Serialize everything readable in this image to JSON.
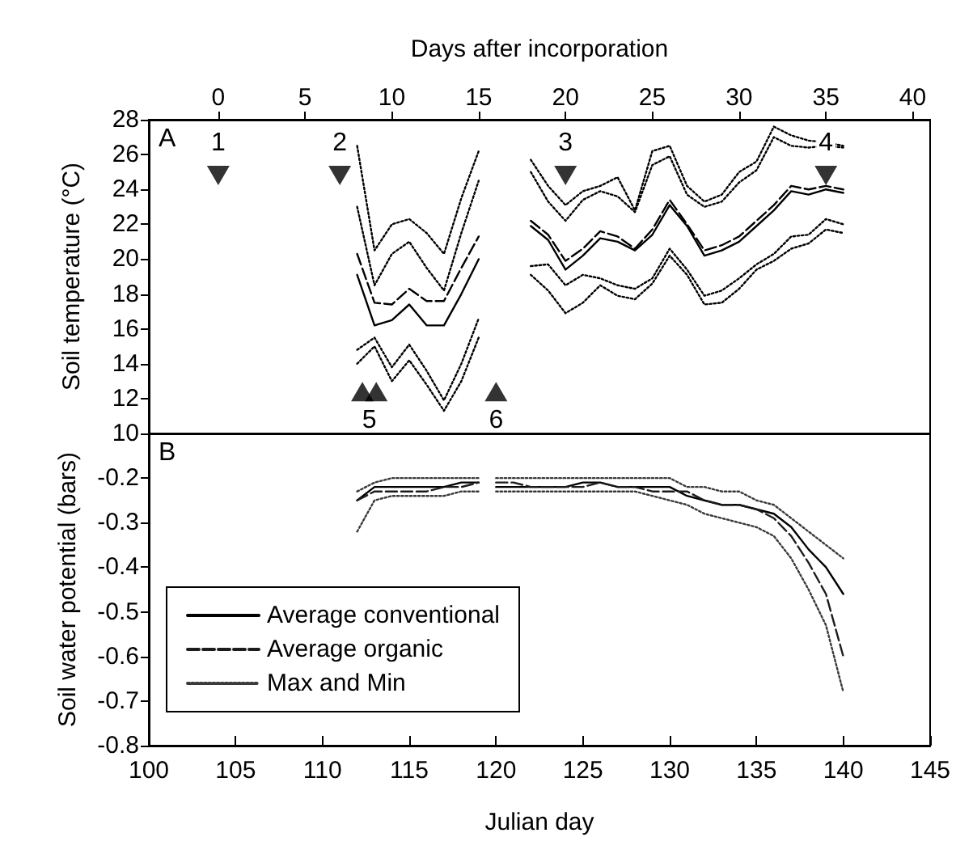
{
  "chart_data": [
    {
      "type": "line",
      "ylabel": "Soil temperature (°C)",
      "x2label": "Days after incorporation",
      "xlim": [
        100,
        145
      ],
      "x2lim": [
        -4,
        41
      ],
      "x2ticks": [
        0,
        5,
        10,
        15,
        20,
        25,
        30,
        35,
        40
      ],
      "ylim": [
        10,
        28
      ],
      "yticks": [
        10,
        12,
        14,
        16,
        18,
        20,
        22,
        24,
        26,
        28
      ],
      "tick_labels": "y",
      "marker": "none",
      "annotations": [
        "A",
        "1",
        "2",
        "3",
        "4",
        "5",
        "6"
      ],
      "x": [
        112,
        113,
        114,
        115,
        116,
        117,
        118,
        119,
        120,
        122,
        123,
        124,
        125,
        126,
        127,
        128,
        129,
        130,
        131,
        132,
        133,
        134,
        135,
        136,
        137,
        138,
        139,
        140
      ],
      "series": [
        {
          "color": "#000000",
          "line_style": "solid",
          "values": [
            19.1,
            16.2,
            16.5,
            17.4,
            16.2,
            16.2,
            18.0,
            20.0,
            null,
            21.9,
            21.1,
            19.4,
            20.2,
            21.2,
            21.0,
            20.5,
            21.4,
            23.1,
            21.9,
            20.2,
            20.5,
            21.0,
            21.9,
            22.8,
            23.9,
            23.7,
            24.0,
            23.8
          ]
        },
        {
          "color": "#000000",
          "line_style": "dashed",
          "values": [
            20.3,
            17.5,
            17.4,
            18.3,
            17.6,
            17.6,
            19.5,
            21.3,
            null,
            22.2,
            21.4,
            19.9,
            20.6,
            21.6,
            21.3,
            20.6,
            21.7,
            23.4,
            22.0,
            20.5,
            20.8,
            21.3,
            22.2,
            23.1,
            24.2,
            24.0,
            24.2,
            24.0
          ]
        },
        {
          "color": "#000000",
          "line_style": "dotted",
          "values": [
            26.5,
            20.5,
            22.0,
            22.3,
            21.5,
            20.3,
            23.5,
            26.2,
            null,
            25.7,
            24.2,
            23.1,
            23.9,
            24.2,
            24.7,
            22.8,
            26.2,
            26.5,
            24.2,
            23.3,
            23.7,
            25.0,
            25.6,
            27.6,
            27.1,
            26.8,
            26.7,
            26.5
          ]
        },
        {
          "color": "#000000",
          "line_style": "dotted",
          "values": [
            23.0,
            18.5,
            20.3,
            21.0,
            19.5,
            18.2,
            21.5,
            24.5,
            null,
            25.0,
            23.3,
            22.2,
            23.4,
            23.9,
            23.6,
            22.7,
            25.4,
            25.9,
            23.7,
            23.0,
            23.3,
            24.4,
            25.1,
            27.0,
            26.5,
            26.4,
            26.5,
            26.4
          ]
        },
        {
          "color": "#000000",
          "line_style": "dotted",
          "values": [
            14.8,
            15.5,
            13.8,
            15.1,
            13.6,
            11.9,
            14.0,
            16.6,
            null,
            19.6,
            19.7,
            18.5,
            19.1,
            18.9,
            18.5,
            18.3,
            18.9,
            20.6,
            19.4,
            17.9,
            18.2,
            18.9,
            19.7,
            20.3,
            21.3,
            21.4,
            22.3,
            22.0
          ]
        },
        {
          "color": "#000000",
          "line_style": "dotted",
          "values": [
            14.0,
            15.0,
            13.0,
            14.2,
            12.8,
            11.3,
            13.0,
            15.5,
            null,
            19.1,
            18.2,
            16.9,
            17.5,
            18.5,
            17.9,
            17.7,
            18.6,
            20.2,
            19.1,
            17.4,
            17.5,
            18.3,
            19.4,
            19.9,
            20.6,
            20.9,
            21.7,
            21.5
          ]
        },
        {
          "type": "scatter",
          "marker": "triangle",
          "color": "#000000",
          "x": [
            104,
            111,
            124,
            139,
            112.3,
            113.1,
            120
          ],
          "values": [
            24.8,
            24.8,
            24.8,
            24.8,
            12.4,
            12.4,
            12.4
          ]
        }
      ]
    },
    {
      "type": "line",
      "ylabel": "Soil water potential (bars)",
      "xlabel": "Julian day",
      "xlim": [
        100,
        145
      ],
      "xticks": [
        100,
        105,
        110,
        115,
        120,
        125,
        130,
        135,
        140,
        145
      ],
      "ylim": [
        -0.8,
        -0.1
      ],
      "yticks": [
        -0.8,
        -0.7,
        -0.6,
        -0.5,
        -0.4,
        -0.3,
        -0.2
      ],
      "marker": "none",
      "legend": "bottom left",
      "annotations": [
        "B"
      ],
      "x": [
        112,
        113,
        114,
        115,
        116,
        117,
        118,
        119,
        119.5,
        120,
        121,
        122,
        123,
        124,
        125,
        126,
        127,
        128,
        129,
        130,
        131,
        132,
        133,
        134,
        135,
        136,
        137,
        138,
        139,
        140
      ],
      "series": [
        {
          "name": "Average conventional",
          "color": "#000000",
          "line_style": "solid",
          "values": [
            -0.25,
            -0.22,
            -0.22,
            -0.22,
            -0.22,
            -0.22,
            -0.21,
            -0.21,
            null,
            -0.22,
            -0.22,
            -0.22,
            -0.22,
            -0.22,
            -0.21,
            -0.21,
            -0.22,
            -0.22,
            -0.22,
            -0.22,
            -0.24,
            -0.25,
            -0.26,
            -0.26,
            -0.27,
            -0.28,
            -0.31,
            -0.36,
            -0.4,
            -0.46
          ]
        },
        {
          "name": "Average organic",
          "color": "#1c1c1c",
          "line_style": "dashed",
          "values": [
            -0.25,
            -0.23,
            -0.23,
            -0.23,
            -0.23,
            -0.22,
            -0.22,
            -0.21,
            null,
            -0.21,
            -0.21,
            -0.22,
            -0.22,
            -0.22,
            -0.22,
            -0.21,
            -0.22,
            -0.22,
            -0.23,
            -0.23,
            -0.23,
            -0.25,
            -0.26,
            -0.26,
            -0.27,
            -0.29,
            -0.33,
            -0.39,
            -0.46,
            -0.6
          ]
        },
        {
          "name": "Max and Min",
          "color": "#3a3a3a",
          "line_style": "dotted",
          "values": [
            -0.23,
            -0.21,
            -0.2,
            -0.2,
            -0.2,
            -0.2,
            -0.2,
            -0.2,
            null,
            -0.2,
            -0.2,
            -0.2,
            -0.2,
            -0.2,
            -0.2,
            -0.2,
            -0.2,
            -0.2,
            -0.2,
            -0.2,
            -0.22,
            -0.22,
            -0.23,
            -0.23,
            -0.25,
            -0.26,
            -0.29,
            -0.32,
            -0.35,
            -0.38
          ]
        },
        {
          "color": "#3a3a3a",
          "line_style": "dotted",
          "values": [
            -0.32,
            -0.25,
            -0.24,
            -0.24,
            -0.24,
            -0.24,
            -0.23,
            -0.23,
            null,
            -0.23,
            -0.23,
            -0.23,
            -0.23,
            -0.23,
            -0.23,
            -0.23,
            -0.23,
            -0.23,
            -0.24,
            -0.25,
            -0.26,
            -0.28,
            -0.29,
            -0.3,
            -0.31,
            -0.33,
            -0.38,
            -0.45,
            -0.53,
            -0.68
          ]
        }
      ]
    }
  ]
}
